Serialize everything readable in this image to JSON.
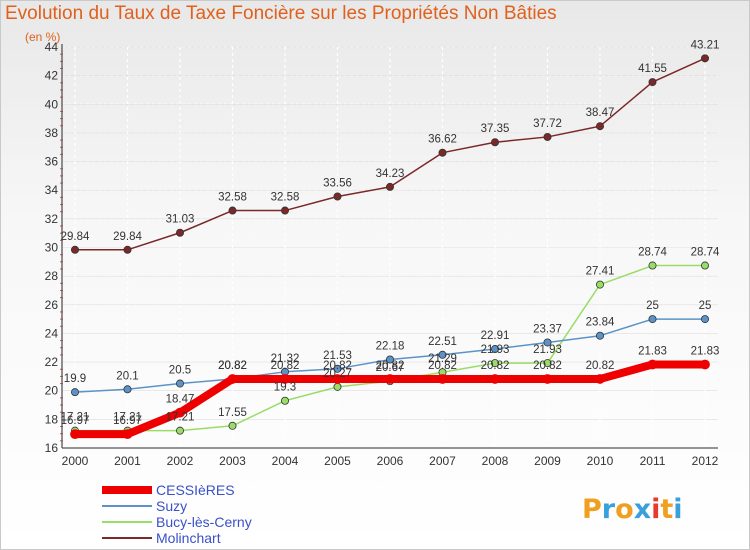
{
  "title": "Evolution du Taux de Taxe Foncière sur les Propriétés Non Bâties",
  "unit": "(en %)",
  "logo": {
    "letters": [
      "P",
      "r",
      "o",
      "x",
      "i",
      "t",
      "i"
    ],
    "colors": [
      "#f0a020",
      "#3aa0dc",
      "#f0a020",
      "#3aa0dc",
      "#e8392e",
      "#f0a020",
      "#3aa0dc"
    ]
  },
  "chart_data": {
    "type": "line",
    "x": [
      "2000",
      "2001",
      "2002",
      "2003",
      "2004",
      "2005",
      "2006",
      "2007",
      "2008",
      "2009",
      "2010",
      "2011",
      "2012"
    ],
    "ylim": [
      16,
      44
    ],
    "yticks": [
      16,
      18,
      20,
      22,
      24,
      26,
      28,
      30,
      32,
      34,
      36,
      38,
      40,
      42,
      44
    ],
    "grid": true,
    "legend_position": "bottom-left",
    "series": [
      {
        "name": "CESSIèRES",
        "color": "#ee0000",
        "values": [
          16.97,
          16.97,
          18.47,
          20.82,
          20.82,
          20.82,
          20.82,
          20.82,
          20.82,
          20.82,
          20.82,
          21.83,
          21.83
        ],
        "labels": [
          "16.97",
          "16.97",
          "18.47",
          "20.82",
          "20.82",
          "20.82",
          "20.82",
          "20.82",
          "20.82",
          "20.82",
          "20.82",
          "21.83",
          "21.83"
        ]
      },
      {
        "name": "Suzy",
        "color": "#5b93c8",
        "values": [
          19.9,
          20.1,
          20.5,
          20.82,
          21.32,
          21.53,
          22.18,
          22.51,
          22.91,
          23.37,
          23.84,
          25,
          25
        ],
        "labels": [
          "19.9",
          "20.1",
          "20.5",
          "20.82",
          "21.32",
          "21.53",
          "22.18",
          "22.51",
          "22.91",
          "23.37",
          "23.84",
          "25",
          "25"
        ]
      },
      {
        "name": "Bucy-lès-Cerny",
        "color": "#99dd66",
        "values": [
          17.21,
          17.21,
          17.21,
          17.55,
          19.3,
          20.27,
          20.67,
          21.29,
          21.93,
          21.93,
          27.41,
          28.74,
          28.74
        ],
        "labels": [
          "17.21",
          "17.21",
          "17.21",
          "17.55",
          "19.3",
          "20.27",
          "20.67",
          "21.29",
          "21.93",
          "21.93",
          "27.41",
          "28.74",
          "28.74"
        ]
      },
      {
        "name": "Molinchart",
        "color": "#7a2828",
        "values": [
          29.84,
          29.84,
          31.03,
          32.58,
          32.58,
          33.56,
          34.23,
          36.62,
          37.35,
          37.72,
          38.47,
          41.55,
          43.21
        ],
        "labels": [
          "29.84",
          "29.84",
          "31.03",
          "32.58",
          "32.58",
          "33.56",
          "34.23",
          "36.62",
          "37.35",
          "37.72",
          "38.47",
          "41.55",
          "43.21"
        ]
      }
    ]
  }
}
